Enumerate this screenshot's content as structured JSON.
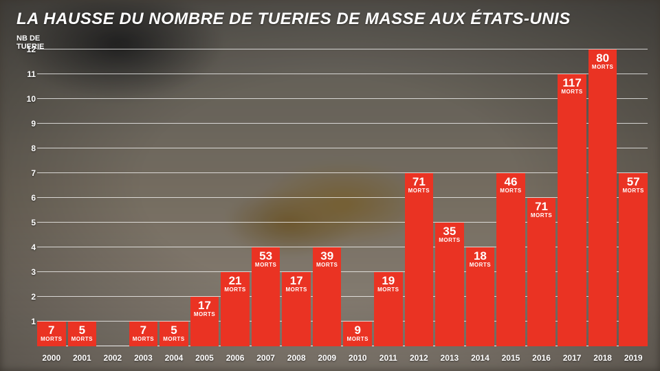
{
  "title": "LA HAUSSE DU NOMBRE DE TUERIES DE MASSE AUX ÉTATS-UNIS",
  "y_axis": {
    "label_line1": "NB DE",
    "label_line2": "TUERIE",
    "ticks": [
      1,
      2,
      3,
      4,
      5,
      6,
      7,
      8,
      9,
      10,
      11,
      12
    ],
    "max": 12
  },
  "chart": {
    "type": "bar",
    "bar_color": "#ea3323",
    "text_color": "#ffffff",
    "gridline_color": "rgba(255,255,255,0.75)",
    "background_overlay": "photo",
    "value_fontsize_pt": 13,
    "unit_fontsize_pt": 6,
    "title_fontsize_pt": 18,
    "data_label_unit": "MORTS",
    "bars": [
      {
        "year": "2000",
        "count": 1,
        "deaths": 7
      },
      {
        "year": "2001",
        "count": 1,
        "deaths": 5
      },
      {
        "year": "2002",
        "count": 0,
        "deaths": null
      },
      {
        "year": "2003",
        "count": 1,
        "deaths": 7
      },
      {
        "year": "2004",
        "count": 1,
        "deaths": 5
      },
      {
        "year": "2005",
        "count": 2,
        "deaths": 17
      },
      {
        "year": "2006",
        "count": 3,
        "deaths": 21
      },
      {
        "year": "2007",
        "count": 4,
        "deaths": 53
      },
      {
        "year": "2008",
        "count": 3,
        "deaths": 17
      },
      {
        "year": "2009",
        "count": 4,
        "deaths": 39
      },
      {
        "year": "2010",
        "count": 1,
        "deaths": 9
      },
      {
        "year": "2011",
        "count": 3,
        "deaths": 19
      },
      {
        "year": "2012",
        "count": 7,
        "deaths": 71
      },
      {
        "year": "2013",
        "count": 5,
        "deaths": 35
      },
      {
        "year": "2014",
        "count": 4,
        "deaths": 18
      },
      {
        "year": "2015",
        "count": 7,
        "deaths": 46
      },
      {
        "year": "2016",
        "count": 6,
        "deaths": 71
      },
      {
        "year": "2017",
        "count": 11,
        "deaths": 117
      },
      {
        "year": "2018",
        "count": 12,
        "deaths": 80
      },
      {
        "year": "2019",
        "count": 7,
        "deaths": 57
      }
    ]
  }
}
